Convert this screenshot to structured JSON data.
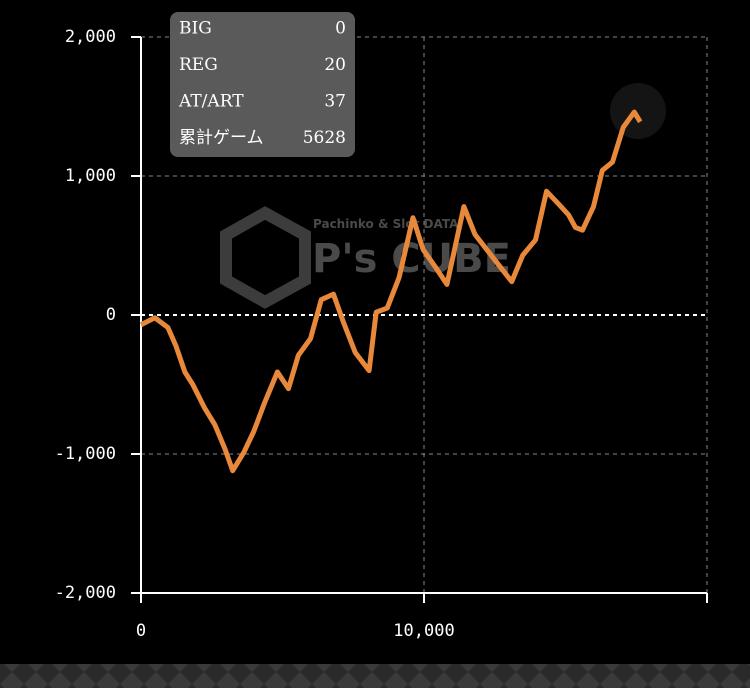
{
  "chart_data": {
    "type": "line",
    "color": "#e8883a",
    "xlim": [
      0,
      20000
    ],
    "ylim": [
      -2000,
      2000
    ],
    "xticks": [
      0,
      {
        "value": 10000,
        "label": "10,000"
      }
    ],
    "yticks": [
      {
        "value": -2000,
        "label": "-2,000"
      },
      {
        "value": -1000,
        "label": "-1,000"
      },
      0,
      {
        "value": 1000,
        "label": "1,000"
      },
      {
        "value": 2000,
        "label": "2,000"
      }
    ],
    "grid": true,
    "x": [
      0,
      490,
      950,
      1230,
      1550,
      1830,
      2250,
      2610,
      2960,
      3240,
      3630,
      3980,
      4370,
      4820,
      5210,
      5560,
      5990,
      6370,
      6800,
      7150,
      7570,
      8060,
      8310,
      8700,
      9120,
      9610,
      9970,
      10420,
      10810,
      11410,
      11800,
      12220,
      12640,
      13100,
      13490,
      13940,
      14330,
      14750,
      15110,
      15350,
      15600,
      15990,
      16300,
      16660,
      17040,
      17430,
      17640
    ],
    "values": [
      -70,
      -20,
      -90,
      -220,
      -410,
      -500,
      -670,
      -790,
      -960,
      -1120,
      -990,
      -840,
      -630,
      -410,
      -530,
      -290,
      -170,
      110,
      150,
      -50,
      -270,
      -400,
      20,
      50,
      270,
      700,
      470,
      340,
      220,
      780,
      580,
      470,
      360,
      240,
      430,
      540,
      890,
      800,
      720,
      630,
      610,
      780,
      1040,
      1100,
      1350,
      1460,
      1390
    ]
  },
  "stats_panel": [
    {
      "label": "BIG",
      "value": 0
    },
    {
      "label": "REG",
      "value": 20
    },
    {
      "label": "AT/ART",
      "value": 37
    },
    {
      "label": "累計ゲーム",
      "value": 5628
    }
  ],
  "watermark": {
    "tagline": "Pachinko & Slot DATA",
    "logo": "P's CUBE"
  }
}
